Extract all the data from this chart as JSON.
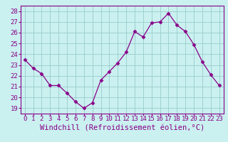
{
  "x": [
    0,
    1,
    2,
    3,
    4,
    5,
    6,
    7,
    8,
    9,
    10,
    11,
    12,
    13,
    14,
    15,
    16,
    17,
    18,
    19,
    20,
    21,
    22,
    23
  ],
  "y": [
    23.5,
    22.7,
    22.2,
    21.1,
    21.1,
    20.4,
    19.6,
    19.0,
    19.5,
    21.6,
    22.4,
    23.2,
    24.2,
    26.1,
    25.6,
    26.9,
    27.0,
    27.8,
    26.7,
    26.1,
    24.9,
    23.3,
    22.1,
    21.1
  ],
  "line_color": "#880088",
  "marker": "D",
  "marker_size": 2.5,
  "bg_color": "#caf0f0",
  "grid_color": "#99cccc",
  "xlabel": "Windchill (Refroidissement éolien,°C)",
  "xlim": [
    -0.5,
    23.5
  ],
  "ylim": [
    18.5,
    28.5
  ],
  "yticks": [
    19,
    20,
    21,
    22,
    23,
    24,
    25,
    26,
    27,
    28
  ],
  "xticks": [
    0,
    1,
    2,
    3,
    4,
    5,
    6,
    7,
    8,
    9,
    10,
    11,
    12,
    13,
    14,
    15,
    16,
    17,
    18,
    19,
    20,
    21,
    22,
    23
  ],
  "xlabel_fontsize": 7.5,
  "tick_fontsize": 6.5,
  "tick_color": "#880088",
  "axis_color": "#880088",
  "spine_color": "#880088"
}
